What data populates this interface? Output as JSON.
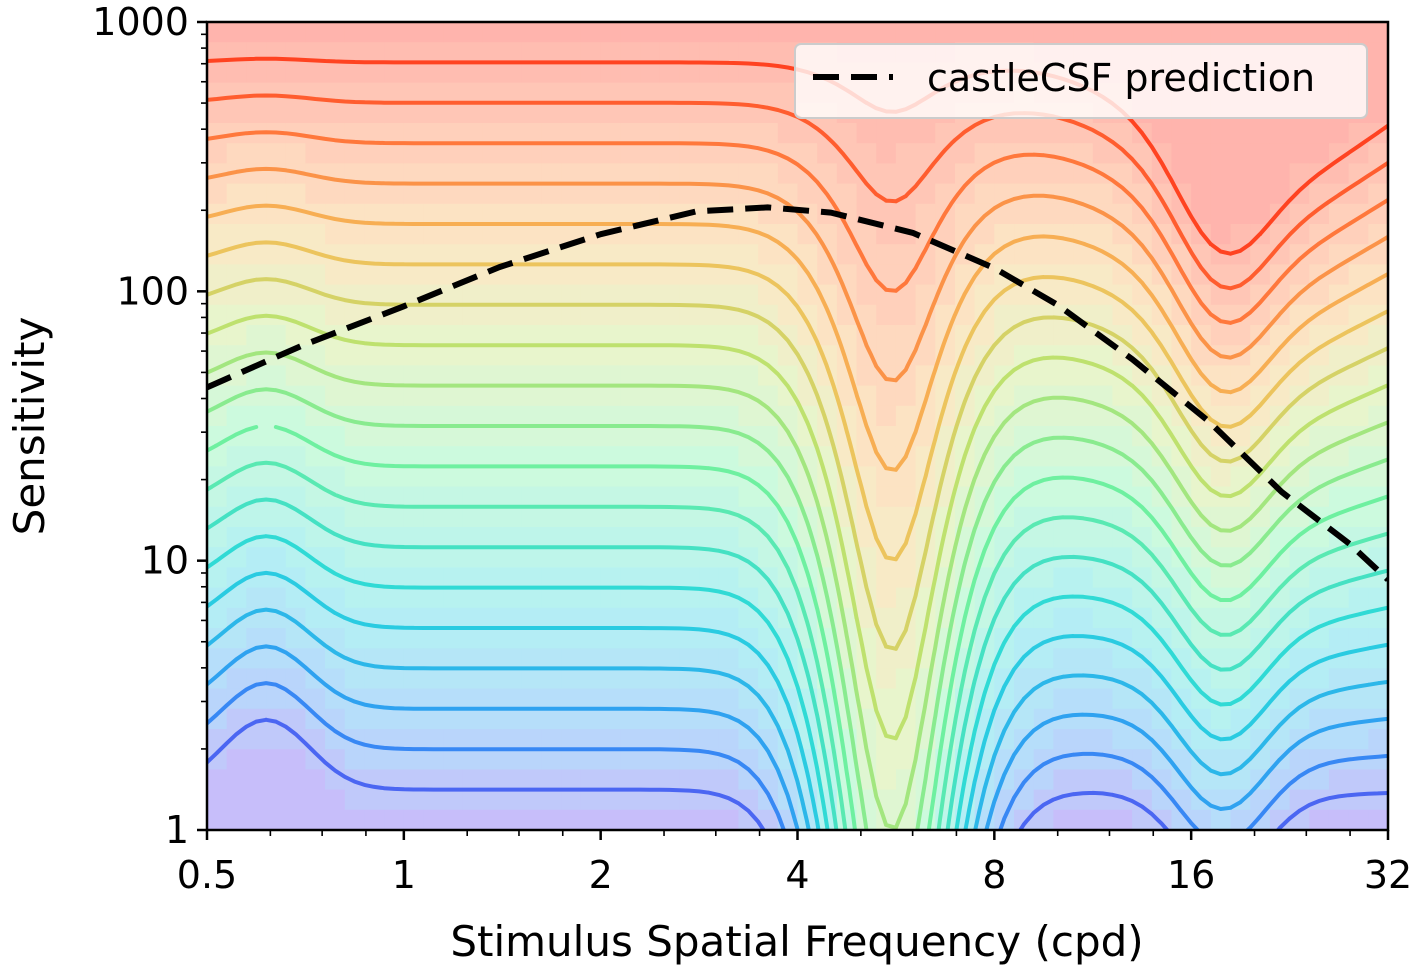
{
  "chart_data": {
    "type": "contour",
    "xlabel": "Stimulus Spatial Frequency (cpd)",
    "ylabel": "Sensitivity",
    "x_scale": "log2",
    "y_scale": "log10",
    "xlim": [
      0.5,
      32
    ],
    "ylim": [
      1,
      1000
    ],
    "x_ticks": [
      "0.5",
      "1",
      "2",
      "4",
      "8",
      "16",
      "32"
    ],
    "x_tick_values": [
      0.5,
      1,
      2,
      4,
      8,
      16,
      32
    ],
    "y_ticks": [
      "1",
      "10",
      "100",
      "1000"
    ],
    "y_tick_values": [
      1,
      10,
      100,
      1000
    ],
    "legend": {
      "position": "top-right",
      "entries": [
        "castleCSF prediction"
      ]
    },
    "colormap": "rainbow",
    "grid": false,
    "contour_levels": 20,
    "series": [
      {
        "name": "castleCSF prediction",
        "style": "dashed",
        "color": "#000000",
        "x": [
          0.5,
          0.7,
          1.0,
          1.4,
          2.0,
          2.8,
          3.6,
          4.5,
          6.0,
          8.0,
          10.0,
          13.0,
          17.0,
          22.0,
          28.0,
          32.0
        ],
        "y": [
          44,
          63,
          88,
          123,
          163,
          198,
          205,
          196,
          165,
          122,
          89,
          56,
          33,
          18,
          11.5,
          8.5
        ]
      }
    ]
  }
}
